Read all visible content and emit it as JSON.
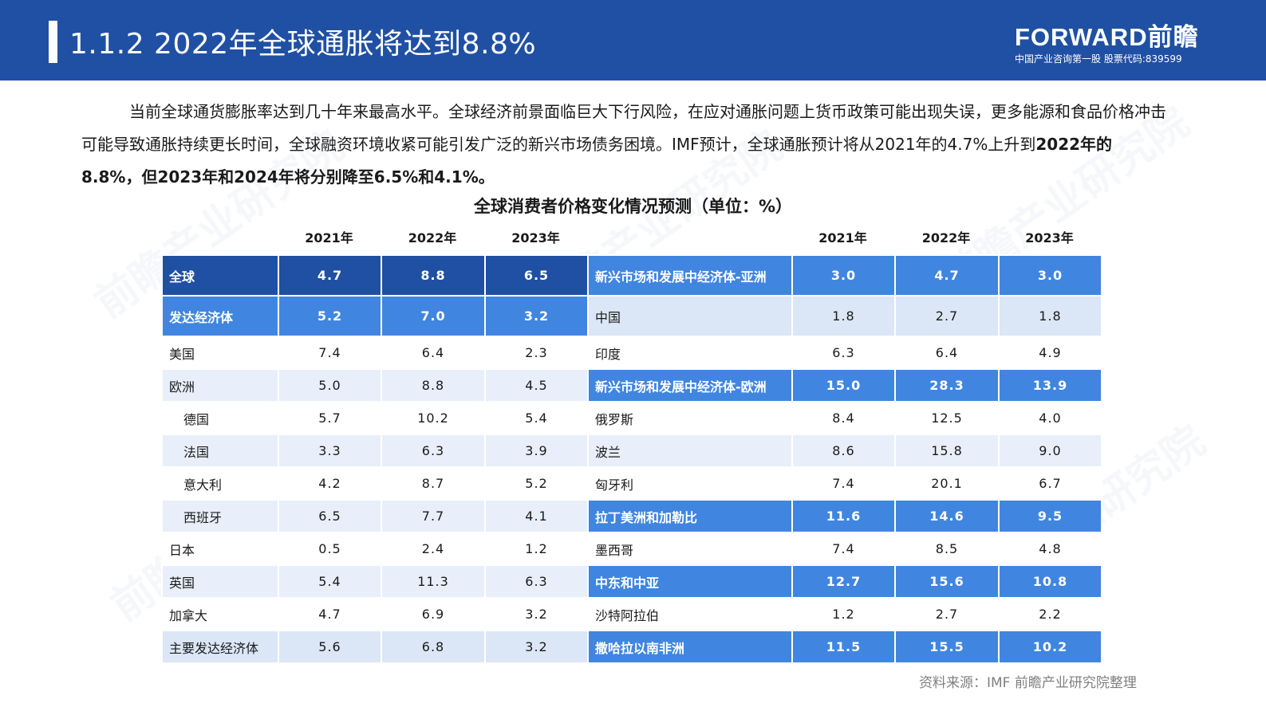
{
  "header": {
    "title": "1.1.2 2022年全球通胀将达到8.8%",
    "logo_brand": "FORWARD前瞻",
    "logo_sub": "中国产业咨询第一股 股票代码:839599"
  },
  "intro": {
    "text_regular": "当前全球通货膨胀率达到几十年来最高水平。全球经济前景面临巨大下行风险，在应对通胀问题上货币政策可能出现失误，更多能源和食品价格冲击可能导致通胀持续更长时间，全球融资环境收紧可能引发广泛的新兴市场债务困境。IMF预计，全球通胀预计将从2021年的4.7%上升到",
    "text_bold": "2022年的8.8%，但2023年和2024年将分别降至6.5%和4.1%。"
  },
  "table": {
    "title": "全球消费者价格变化情况预测（单位：%）",
    "years": [
      "2021年",
      "2022年",
      "2023年"
    ],
    "left_rows": [
      {
        "name": "全球",
        "values": [
          "4.7",
          "8.8",
          "6.5"
        ]
      },
      {
        "name": "发达经济体",
        "values": [
          "5.2",
          "7.0",
          "3.2"
        ]
      },
      {
        "name": "美国",
        "values": [
          "7.4",
          "6.4",
          "2.3"
        ]
      },
      {
        "name": "欧洲",
        "values": [
          "5.0",
          "8.8",
          "4.5"
        ]
      },
      {
        "name": "德国",
        "values": [
          "5.7",
          "10.2",
          "5.4"
        ]
      },
      {
        "name": "法国",
        "values": [
          "3.3",
          "6.3",
          "3.9"
        ]
      },
      {
        "name": "意大利",
        "values": [
          "4.2",
          "8.7",
          "5.2"
        ]
      },
      {
        "name": "西班牙",
        "values": [
          "6.5",
          "7.7",
          "4.1"
        ]
      },
      {
        "name": "日本",
        "values": [
          "0.5",
          "2.4",
          "1.2"
        ]
      },
      {
        "name": "英国",
        "values": [
          "5.4",
          "11.3",
          "6.3"
        ]
      },
      {
        "name": "加拿大",
        "values": [
          "4.7",
          "6.9",
          "3.2"
        ]
      },
      {
        "name": "主要发达经济体",
        "values": [
          "5.6",
          "6.8",
          "3.2"
        ]
      }
    ],
    "right_rows": [
      {
        "name": "新兴市场和发展中经济体-亚洲",
        "values": [
          "3.0",
          "4.7",
          "3.0"
        ]
      },
      {
        "name": "中国",
        "values": [
          "1.8",
          "2.7",
          "1.8"
        ]
      },
      {
        "name": "印度",
        "values": [
          "6.3",
          "6.4",
          "4.9"
        ]
      },
      {
        "name": "新兴市场和发展中经济体-欧洲",
        "values": [
          "15.0",
          "28.3",
          "13.9"
        ]
      },
      {
        "name": "俄罗斯",
        "values": [
          "8.4",
          "12.5",
          "4.0"
        ]
      },
      {
        "name": "波兰",
        "values": [
          "8.6",
          "15.8",
          "9.0"
        ]
      },
      {
        "name": "匈牙利",
        "values": [
          "7.4",
          "20.1",
          "6.7"
        ]
      },
      {
        "name": "拉丁美洲和加勒比",
        "values": [
          "11.6",
          "14.6",
          "9.5"
        ]
      },
      {
        "name": "墨西哥",
        "values": [
          "7.4",
          "8.5",
          "4.8"
        ]
      },
      {
        "name": "中东和中亚",
        "values": [
          "12.7",
          "15.6",
          "10.8"
        ]
      },
      {
        "name": "沙特阿拉伯",
        "values": [
          "1.2",
          "2.7",
          "2.2"
        ]
      },
      {
        "name": "撒哈拉以南非洲",
        "values": [
          "11.5",
          "15.5",
          "10.2"
        ]
      }
    ]
  },
  "source": "资料来源：IMF 前瞻产业研究院整理",
  "watermark": "前瞻产业研究院",
  "colors": {
    "header_bg": "#2050a3",
    "navy_cell": "#2050a3",
    "blue_cell": "#4086e0",
    "light_cell": "#dbe6f6",
    "pale_cell": "#e8effa",
    "source_text": "#7f7f7f"
  }
}
